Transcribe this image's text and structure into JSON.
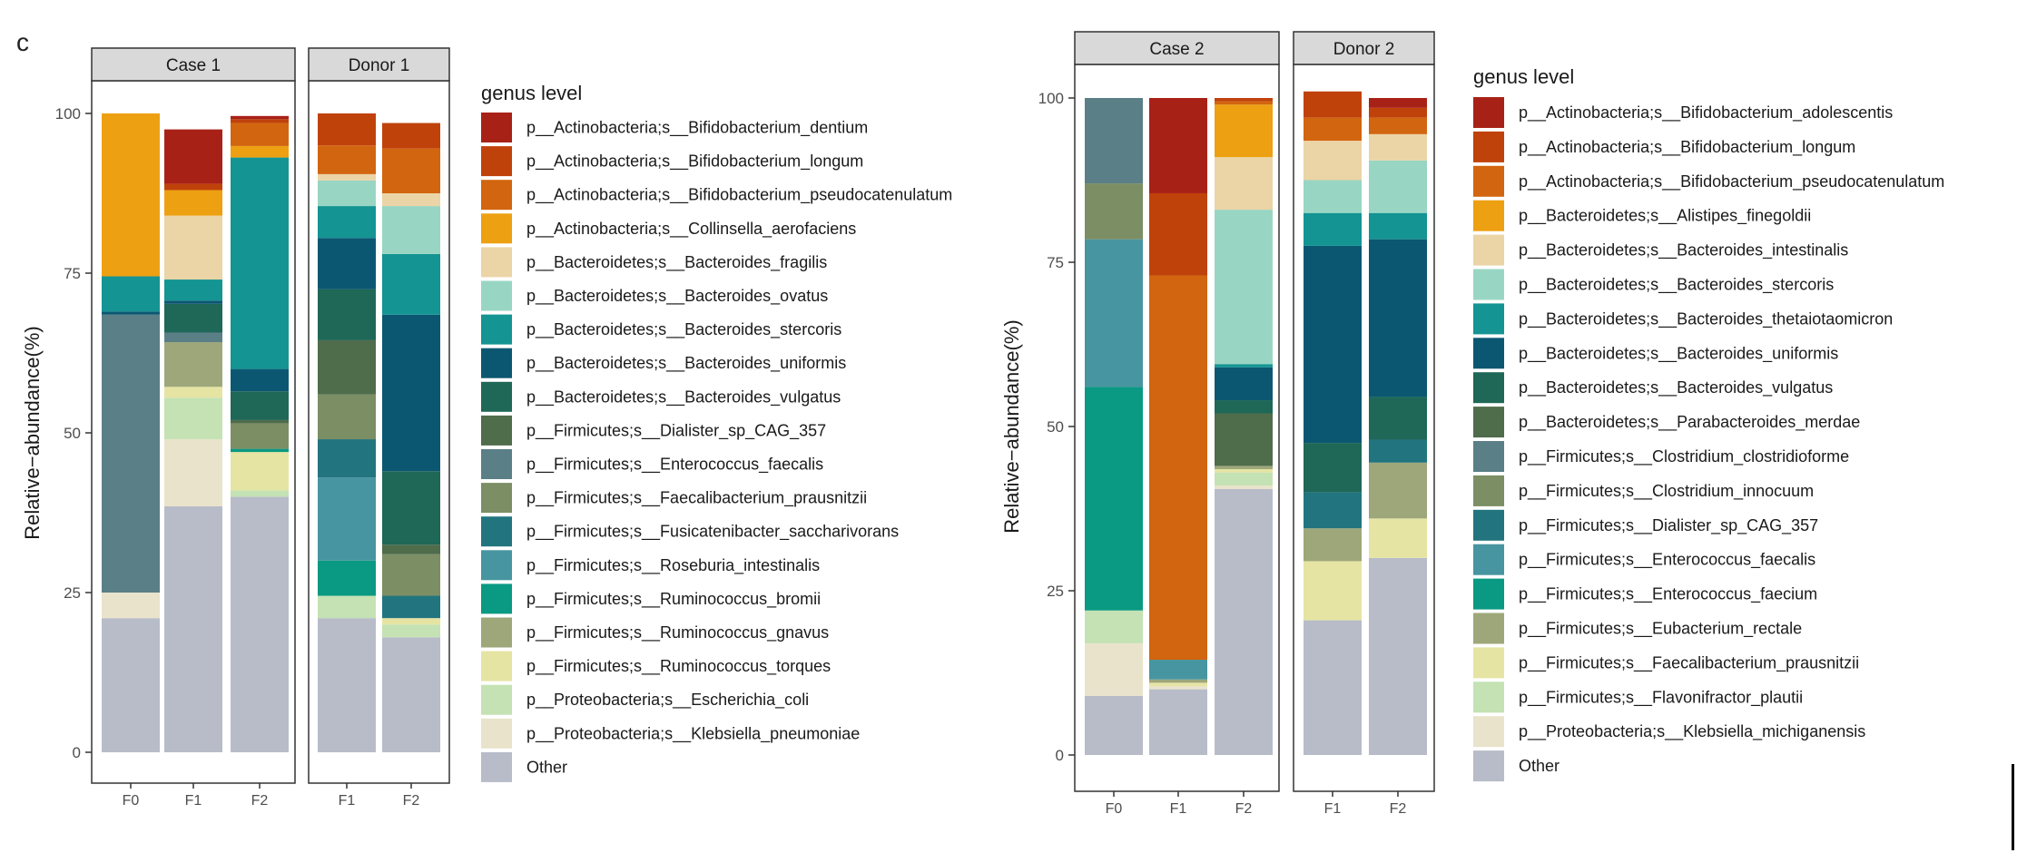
{
  "panel_label": "c",
  "chart_data": [
    {
      "type": "bar",
      "stacked": true,
      "facets": [
        "Case 1",
        "Donor 1"
      ],
      "categories": [
        {
          "facet": "Case 1",
          "label": "F0"
        },
        {
          "facet": "Case 1",
          "label": "F1"
        },
        {
          "facet": "Case 1",
          "label": "F2"
        },
        {
          "facet": "Donor 1",
          "label": "F1"
        },
        {
          "facet": "Donor 1",
          "label": "F2"
        }
      ],
      "ylabel": "Relative−abundance(%)",
      "ylim": [
        0,
        100
      ],
      "yticks": [
        0,
        25,
        50,
        75,
        100
      ],
      "grid": false,
      "legend_title": "genus level",
      "legend_position": "right",
      "series": [
        {
          "name": "p__Actinobacteria;s__Bifidobacterium_dentium",
          "color": "#a82117",
          "values": [
            0,
            8.5,
            0.5,
            0,
            0
          ]
        },
        {
          "name": "p__Actinobacteria;s__Bifidobacterium_longum",
          "color": "#c0420b",
          "values": [
            0,
            1.0,
            0.6,
            5.0,
            4.0
          ]
        },
        {
          "name": "p__Actinobacteria;s__Bifidobacterium_pseudocatenulatum",
          "color": "#d2650f",
          "values": [
            0,
            0,
            3.6,
            4.5,
            7.0
          ]
        },
        {
          "name": "p__Actinobacteria;s__Collinsella_aerofaciens",
          "color": "#eda012",
          "values": [
            25.5,
            4.0,
            1.8,
            0,
            0
          ]
        },
        {
          "name": "p__Bacteroidetes;s__Bacteroides_fragilis",
          "color": "#ebd4a6",
          "values": [
            0,
            10.0,
            0,
            1.0,
            2.0
          ]
        },
        {
          "name": "p__Bacteroidetes;s__Bacteroides_ovatus",
          "color": "#98d6c3",
          "values": [
            0,
            0,
            0,
            4.0,
            7.5
          ]
        },
        {
          "name": "p__Bacteroidetes;s__Bacteroides_stercoris",
          "color": "#149493",
          "values": [
            5.5,
            3.3,
            33.1,
            5.0,
            9.5
          ]
        },
        {
          "name": "p__Bacteroidetes;s__Bacteroides_uniformis",
          "color": "#0b5772",
          "values": [
            0.5,
            0.5,
            3.5,
            8.0,
            24.5
          ]
        },
        {
          "name": "p__Bacteroidetes;s__Bacteroides_vulgatus",
          "color": "#1f6757",
          "values": [
            0,
            4.5,
            4.5,
            8.0,
            11.5
          ]
        },
        {
          "name": "p__Firmicutes;s__Dialister_sp_CAG_357",
          "color": "#4f6c4b",
          "values": [
            0,
            0,
            0.5,
            8.5,
            1.5
          ]
        },
        {
          "name": "p__Firmicutes;s__Enterococcus_faecalis",
          "color": "#5a7f86",
          "values": [
            43.5,
            1.5,
            0,
            0,
            0
          ]
        },
        {
          "name": "p__Firmicutes;s__Faecalibacterium_prausnitzii",
          "color": "#7c8e64",
          "values": [
            0,
            0,
            4.0,
            7.0,
            6.5
          ]
        },
        {
          "name": "p__Firmicutes;s__Fusicatenibacter_saccharivorans",
          "color": "#22757f",
          "values": [
            0,
            0,
            0,
            6.0,
            3.5
          ]
        },
        {
          "name": "p__Firmicutes;s__Roseburia_intestinalis",
          "color": "#4795a0",
          "values": [
            0,
            0,
            0,
            13.0,
            0
          ]
        },
        {
          "name": "p__Firmicutes;s__Ruminococcus_bromii",
          "color": "#0a9982",
          "values": [
            0,
            0,
            0.5,
            5.5,
            0
          ]
        },
        {
          "name": "p__Firmicutes;s__Ruminococcus_gnavus",
          "color": "#9ea77a",
          "values": [
            0,
            7.0,
            0,
            0,
            0
          ]
        },
        {
          "name": "p__Firmicutes;s__Ruminococcus_torques",
          "color": "#e6e4a3",
          "values": [
            0,
            1.7,
            6.0,
            0,
            1.0
          ]
        },
        {
          "name": "p__Proteobacteria;s__Escherichia_coli",
          "color": "#c4e2b3",
          "values": [
            0,
            6.5,
            1.0,
            3.5,
            2.0
          ]
        },
        {
          "name": "p__Proteobacteria;s__Klebsiella_pneumoniae",
          "color": "#e9e3cb",
          "values": [
            4.0,
            10.5,
            0,
            0,
            0
          ]
        },
        {
          "name": "Other",
          "color": "#b7bcc8",
          "values": [
            21.0,
            38.5,
            40.0,
            21.0,
            18.0
          ]
        }
      ]
    },
    {
      "type": "bar",
      "stacked": true,
      "facets": [
        "Case 2",
        "Donor 2"
      ],
      "categories": [
        {
          "facet": "Case 2",
          "label": "F0"
        },
        {
          "facet": "Case 2",
          "label": "F1"
        },
        {
          "facet": "Case 2",
          "label": "F2"
        },
        {
          "facet": "Donor 2",
          "label": "F1"
        },
        {
          "facet": "Donor 2",
          "label": "F2"
        }
      ],
      "ylabel": "Relative−abundance(%)",
      "ylim": [
        0,
        100
      ],
      "yticks": [
        0,
        25,
        50,
        75,
        100
      ],
      "grid": false,
      "legend_title": "genus level",
      "legend_position": "right",
      "series": [
        {
          "name": "p__Actinobacteria;s__Bifidobacterium_adolescentis",
          "color": "#a82117",
          "values": [
            0,
            14.5,
            0,
            0,
            1.5
          ]
        },
        {
          "name": "p__Actinobacteria;s__Bifidobacterium_longum",
          "color": "#c0420b",
          "values": [
            0,
            12.5,
            0.5,
            4.0,
            1.5
          ]
        },
        {
          "name": "p__Actinobacteria;s__Bifidobacterium_pseudocatenulatum",
          "color": "#d2650f",
          "values": [
            0,
            58.5,
            0.5,
            3.5,
            2.5
          ]
        },
        {
          "name": "p__Bacteroidetes;s__Alistipes_finegoldii",
          "color": "#eda012",
          "values": [
            0,
            0,
            8.0,
            0,
            0
          ]
        },
        {
          "name": "p__Bacteroidetes;s__Bacteroides_intestinalis",
          "color": "#ebd4a6",
          "values": [
            0,
            0,
            8.0,
            6.0,
            4.0
          ]
        },
        {
          "name": "p__Bacteroidetes;s__Bacteroides_stercoris",
          "color": "#98d6c3",
          "values": [
            0,
            0,
            23.5,
            5.0,
            8.0
          ]
        },
        {
          "name": "p__Bacteroidetes;s__Bacteroides_thetaiotaomicron",
          "color": "#149493",
          "values": [
            0,
            0,
            0.5,
            5.0,
            4.0
          ]
        },
        {
          "name": "p__Bacteroidetes;s__Bacteroides_uniformis",
          "color": "#0b5772",
          "values": [
            0,
            0,
            5.0,
            30.0,
            24.0
          ]
        },
        {
          "name": "p__Bacteroidetes;s__Bacteroides_vulgatus",
          "color": "#1f6757",
          "values": [
            0,
            0,
            2.0,
            7.5,
            6.5
          ]
        },
        {
          "name": "p__Bacteroidetes;s__Parabacteroides_merdae",
          "color": "#4f6c4b",
          "values": [
            0,
            0,
            8.0,
            0,
            0
          ]
        },
        {
          "name": "p__Firmicutes;s__Clostridium_clostridioforme",
          "color": "#5a7f86",
          "values": [
            13.0,
            0,
            0,
            0,
            0
          ]
        },
        {
          "name": "p__Firmicutes;s__Clostridium_innocuum",
          "color": "#7c8e64",
          "values": [
            8.5,
            0,
            0,
            0,
            0
          ]
        },
        {
          "name": "p__Firmicutes;s__Dialister_sp_CAG_357",
          "color": "#22757f",
          "values": [
            0,
            0,
            0,
            5.5,
            3.5
          ]
        },
        {
          "name": "p__Firmicutes;s__Enterococcus_faecalis",
          "color": "#4795a0",
          "values": [
            22.5,
            3.0,
            0,
            0,
            0
          ]
        },
        {
          "name": "p__Firmicutes;s__Enterococcus_faecium",
          "color": "#0a9982",
          "values": [
            34.0,
            0,
            0,
            0,
            0
          ]
        },
        {
          "name": "p__Firmicutes;s__Eubacterium_rectale",
          "color": "#9ea77a",
          "values": [
            0,
            0.5,
            0.5,
            5.0,
            8.5
          ]
        },
        {
          "name": "p__Firmicutes;s__Faecalibacterium_prausnitzii",
          "color": "#e6e4a3",
          "values": [
            0,
            0.5,
            0.5,
            9.0,
            6.0
          ]
        },
        {
          "name": "p__Firmicutes;s__Flavonifractor_plautii",
          "color": "#c4e2b3",
          "values": [
            5.0,
            0,
            2.0,
            0,
            0
          ]
        },
        {
          "name": "p__Proteobacteria;s__Klebsiella_michiganensis",
          "color": "#e9e3cb",
          "values": [
            8.0,
            0.5,
            0.5,
            0,
            0
          ]
        },
        {
          "name": "Other",
          "color": "#b7bcc8",
          "values": [
            9.0,
            10.0,
            40.5,
            20.5,
            30.0
          ]
        }
      ]
    }
  ]
}
